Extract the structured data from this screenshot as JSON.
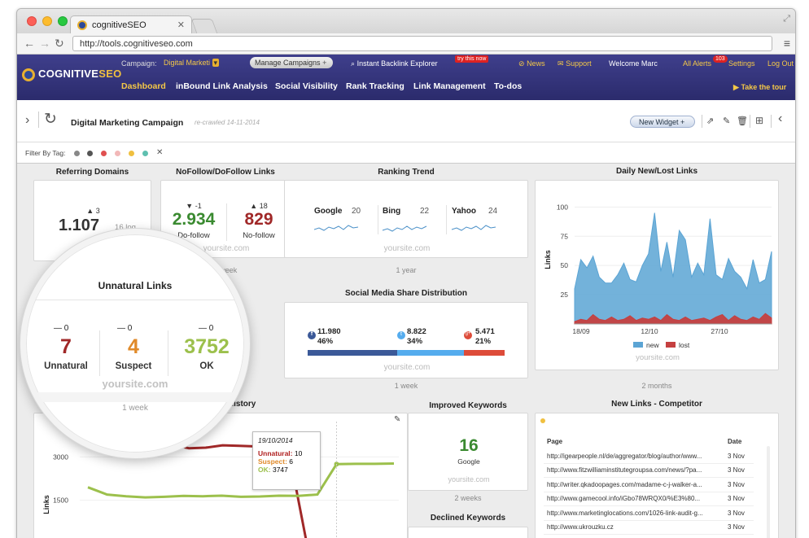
{
  "browser": {
    "tab_title": "cognitiveSEO",
    "url": "http://tools.cognitiveseo.com"
  },
  "brand": {
    "logo_left": "COGNITIVE",
    "logo_right": "SEO"
  },
  "topbar": {
    "campaign_label": "Campaign:",
    "campaign_value": "Digital Marketi",
    "manage_campaigns": "Manage Campaigns",
    "instant_explorer": "Instant Backlink Explorer",
    "try_now": "try this now",
    "news": "News",
    "support": "Support",
    "welcome": "Welcome Marc",
    "alerts": "All Alerts",
    "alerts_count": "103",
    "settings": "Settings",
    "logout": "Log Out"
  },
  "nav": {
    "items": [
      "Dashboard",
      "inBound Link Analysis",
      "Social Visibility",
      "Rank Tracking",
      "Link Management",
      "To-dos"
    ],
    "tour": "Take the tour"
  },
  "campaign": {
    "title": "Digital Marketing Campaign",
    "recrawled": "re-crawled 14-11-2014",
    "new_widget": "New Widget",
    "filter_label": "Filter By Tag:",
    "tag_colors": [
      "#888888",
      "#555555",
      "#e05050",
      "#f2b8b8",
      "#f0c040",
      "#5fc0b0"
    ]
  },
  "widgets": {
    "referring_domains": {
      "title": "Referring Domains",
      "change": "3",
      "value": "1.107",
      "extra": "16 log"
    },
    "nofollow": {
      "title": "NoFollow/DoFollow Links",
      "dofollow_change": "-1",
      "dofollow_value": "2.934",
      "dofollow_label": "Do-follow",
      "nofollow_change": "18",
      "nofollow_value": "829",
      "nofollow_label": "No-follow",
      "site": "yoursite.com",
      "period": "1 week"
    },
    "ranking_trend": {
      "title": "Ranking Trend",
      "engines": [
        {
          "name": "Google",
          "value": "20"
        },
        {
          "name": "Bing",
          "value": "22"
        },
        {
          "name": "Yahoo",
          "value": "24"
        }
      ],
      "site": "yoursite.com",
      "period": "1 year"
    },
    "social": {
      "title": "Social Media Share Distribution",
      "items": [
        {
          "count": "11.980",
          "pct": "46%",
          "color": "#3b5998",
          "share": 0.46
        },
        {
          "count": "8.822",
          "pct": "34%",
          "color": "#55acee",
          "share": 0.34
        },
        {
          "count": "5.471",
          "pct": "21%",
          "color": "#dd4b39",
          "share": 0.21
        }
      ],
      "site": "yoursite.com",
      "period": "1 week"
    },
    "unnatural": {
      "title": "Unnatural Links",
      "items": [
        {
          "change": "0",
          "value": "7",
          "label": "Unnatural",
          "color": "#a02828"
        },
        {
          "change": "0",
          "value": "4",
          "label": "Suspect",
          "color": "#e08a2a"
        },
        {
          "change": "0",
          "value": "3752",
          "label": "OK",
          "color": "#9cc04c"
        }
      ],
      "site": "yoursite.com",
      "period": "1 week"
    },
    "links_history": {
      "title": "Links History",
      "tooltip_date": "19/10/2014",
      "tooltip_rows": [
        {
          "label": "Unnatural:",
          "value": "10",
          "color": "#b02020"
        },
        {
          "label": "Suspect:",
          "value": "6",
          "color": "#e08a2a"
        },
        {
          "label": "OK:",
          "value": "3747",
          "color": "#9cc04c"
        }
      ]
    },
    "improved": {
      "title": "Improved Keywords",
      "value": "16",
      "engine": "Google",
      "site": "yoursite.com",
      "period": "2 weeks"
    },
    "declined": {
      "title": "Declined Keywords"
    },
    "new_links_competitor": {
      "title": "New Links - Competitor",
      "col_page": "Page",
      "col_date": "Date",
      "rows": [
        {
          "page": "http://igearpeople.nl/de/aggregator/blog/author/www...",
          "date": "3 Nov"
        },
        {
          "page": "http://www.fitzwilliaminstitutegroupsa.com/news/?pa...",
          "date": "3 Nov"
        },
        {
          "page": "http://writer.qkadoopages.com/madame-c-j-walker-a...",
          "date": "3 Nov"
        },
        {
          "page": "http://www.gamecool.info/iGbo78WRQX0/%E3%80...",
          "date": "3 Nov"
        },
        {
          "page": "http://www.marketinglocations.com/1026-link-audit-g...",
          "date": "3 Nov"
        },
        {
          "page": "http://www.ukrouzku.cz",
          "date": "3 Nov"
        }
      ]
    }
  },
  "chart_data": [
    {
      "type": "area",
      "title": "Daily New/Lost Links",
      "ylabel": "Links",
      "xlabel": "",
      "x_ticks": [
        "18/09",
        "12/10",
        "27/10"
      ],
      "y_ticks": [
        25,
        50,
        75,
        100
      ],
      "ylim": [
        0,
        110
      ],
      "series": [
        {
          "name": "new",
          "color": "#5ba4d4",
          "values": [
            30,
            55,
            48,
            58,
            40,
            35,
            35,
            42,
            52,
            38,
            36,
            50,
            60,
            95,
            45,
            70,
            40,
            80,
            72,
            40,
            52,
            42,
            90,
            42,
            38,
            56,
            45,
            40,
            30,
            55,
            35,
            38,
            62
          ]
        },
        {
          "name": "lost",
          "color": "#c54040",
          "values": [
            2,
            4,
            3,
            8,
            4,
            3,
            6,
            3,
            4,
            7,
            3,
            5,
            4,
            6,
            3,
            8,
            4,
            3,
            6,
            3,
            4,
            5,
            3,
            6,
            8,
            3,
            7,
            4,
            3,
            6,
            4,
            9,
            5
          ]
        }
      ],
      "period": "2 months",
      "site": "yoursite.com"
    },
    {
      "type": "line",
      "title": "Links History",
      "ylabel": "Links",
      "y_ticks": [
        1500,
        3000
      ],
      "series": [
        {
          "name": "Unnatural",
          "color": "#a02828",
          "values": [
            3500,
            3450,
            3480,
            3460,
            3400,
            3420,
            3300,
            3320,
            3400,
            3380,
            3360,
            3380,
            3000,
            0
          ]
        },
        {
          "name": "OK",
          "color": "#9cc04c",
          "values": [
            1950,
            1700,
            1640,
            1600,
            1620,
            1650,
            1640,
            1660,
            1620,
            1630,
            1660,
            1650,
            1700,
            2750,
            2760,
            2760,
            2770
          ]
        }
      ]
    }
  ]
}
